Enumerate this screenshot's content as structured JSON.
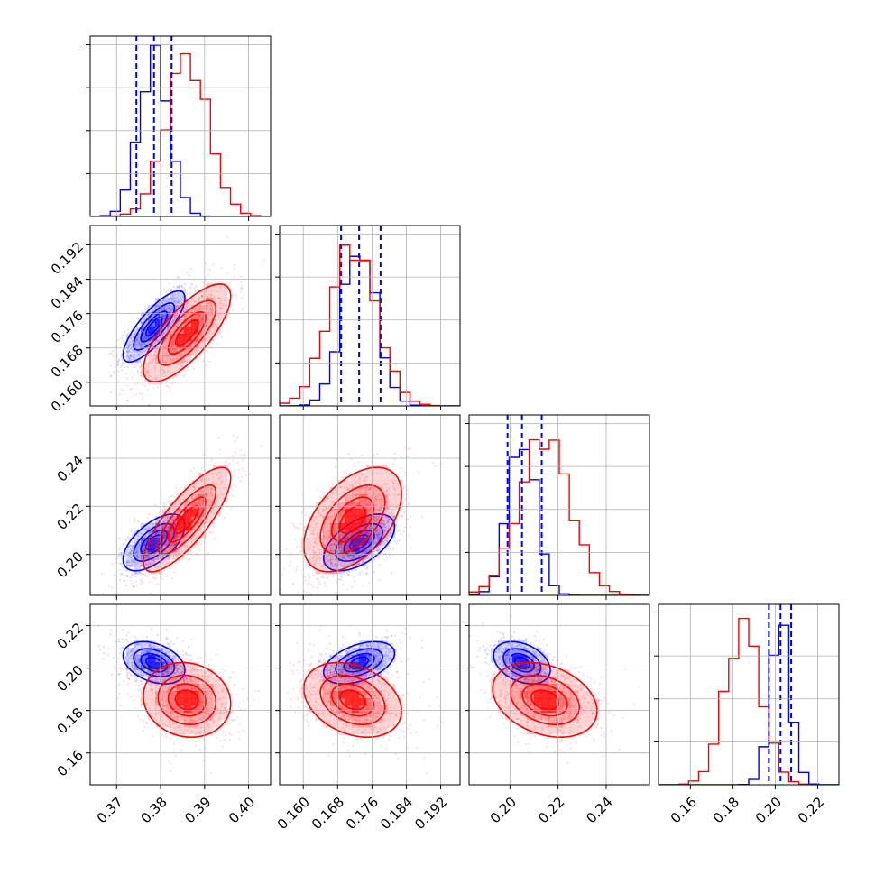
{
  "colors": {
    "blue": "#0000ff",
    "red": "#ff0000",
    "grid": "#b0b0b0"
  },
  "chart_data": {
    "type": "corner",
    "title": "",
    "grid": true,
    "parameters": [
      {
        "index": 0,
        "range": [
          0.364,
          0.405
        ],
        "ticks": [
          "0.37",
          "0.38",
          "0.39",
          "0.40"
        ],
        "tick_values": [
          0.37,
          0.38,
          0.39,
          0.4
        ]
      },
      {
        "index": 1,
        "range": [
          0.1545,
          0.1965
        ],
        "ticks": [
          "0.160",
          "0.168",
          "0.176",
          "0.184",
          "0.192"
        ],
        "tick_values": [
          0.16,
          0.168,
          0.176,
          0.184,
          0.192
        ]
      },
      {
        "index": 2,
        "range": [
          0.183,
          0.258
        ],
        "ticks": [
          "0.20",
          "0.22",
          "0.24"
        ],
        "tick_values": [
          0.2,
          0.22,
          0.24
        ]
      },
      {
        "index": 3,
        "range": [
          0.145,
          0.23
        ],
        "ticks": [
          "0.16",
          "0.18",
          "0.20",
          "0.22"
        ],
        "tick_values": [
          0.16,
          0.18,
          0.2,
          0.22
        ]
      }
    ],
    "series": [
      {
        "color": "blue",
        "means": [
          0.3785,
          0.173,
          0.205,
          0.2025
        ],
        "stds": [
          0.0034,
          0.004,
          0.0057,
          0.0048
        ],
        "correlations": {
          "0-1": 0.8,
          "0-2": 0.6,
          "0-3": -0.35,
          "1-2": 0.55,
          "1-3": 0.45,
          "2-3": -0.35
        },
        "quantiles": [
          [
            0.3745,
            0.3785,
            0.3825
          ],
          [
            0.1688,
            0.173,
            0.178
          ],
          [
            0.199,
            0.205,
            0.2132
          ],
          [
            0.197,
            0.2025,
            0.2075
          ]
        ]
      },
      {
        "color": "red",
        "means": [
          0.386,
          0.1715,
          0.2145,
          0.185
        ],
        "stds": [
          0.0048,
          0.0055,
          0.0105,
          0.0085
        ],
        "correlations": {
          "0-1": 0.75,
          "0-2": 0.8,
          "0-3": -0.1,
          "1-2": 0.5,
          "1-3": -0.3,
          "2-3": -0.3
        },
        "quantiles": []
      }
    ]
  }
}
